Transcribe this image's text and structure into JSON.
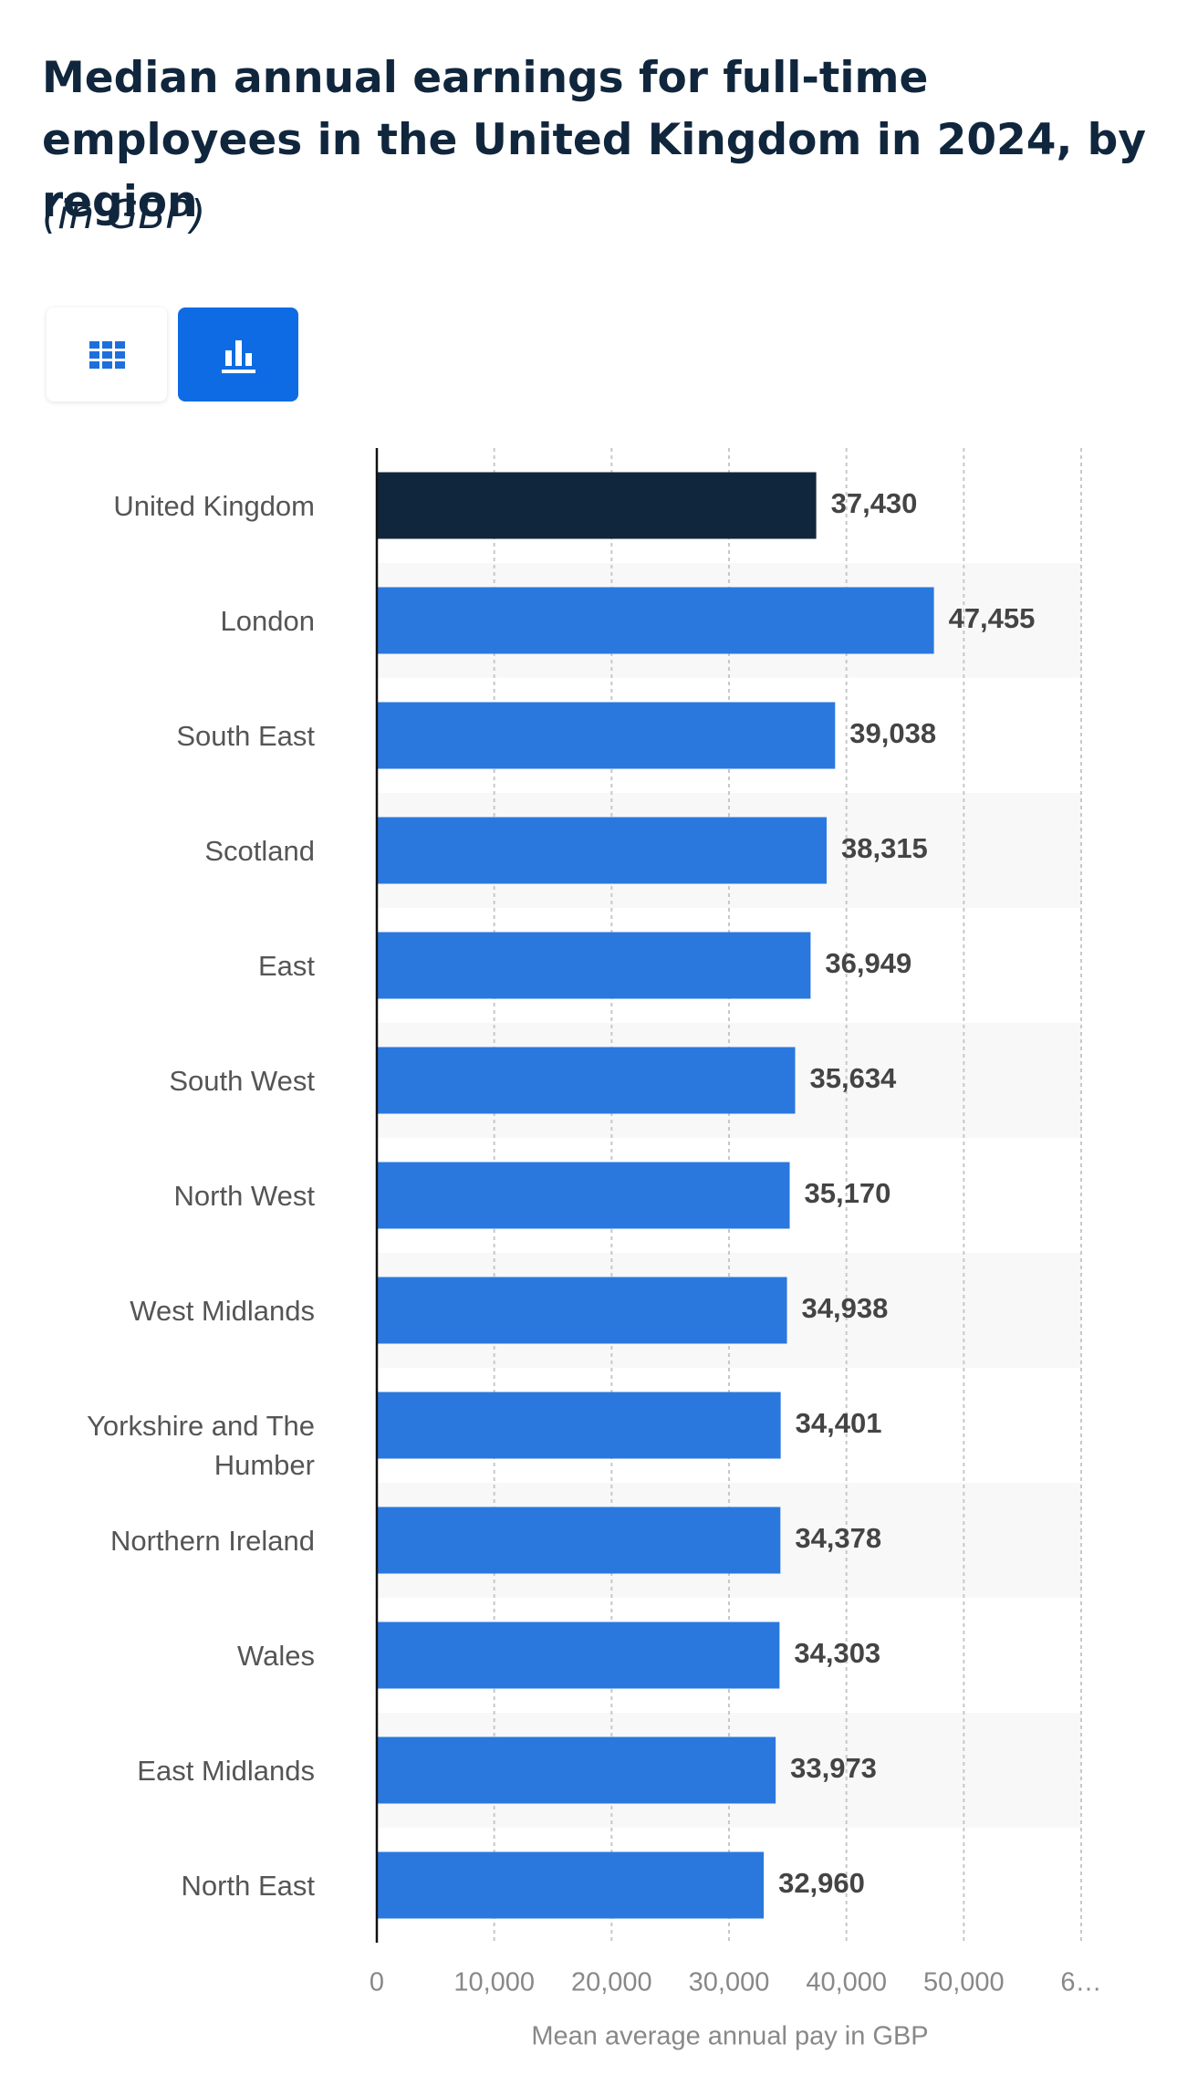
{
  "chart_data": {
    "type": "hbar",
    "title": "Median annual earnings for full-time employees in the United Kingdom in 2024, by region",
    "subtitle": "(in GBP)",
    "x_label": "Mean average annual pay in GBP",
    "categories": [
      "United Kingdom",
      "London",
      "South East",
      "Scotland",
      "East",
      "South West",
      "North West",
      "West Midlands",
      "Yorkshire and The Humber",
      "Northern Ireland",
      "Wales",
      "East Midlands",
      "North East"
    ],
    "values": [
      37430,
      47455,
      39038,
      38315,
      36949,
      35634,
      35170,
      34938,
      34401,
      34378,
      34303,
      33973,
      32960
    ],
    "value_labels": [
      "37,430",
      "47,455",
      "39,038",
      "38,315",
      "36,949",
      "35,634",
      "35,170",
      "34,938",
      "34,401",
      "34,378",
      "34,303",
      "33,973",
      "32,960"
    ],
    "colors": [
      "#10263d",
      "#2a78de",
      "#2a78de",
      "#2a78de",
      "#2a78de",
      "#2a78de",
      "#2a78de",
      "#2a78de",
      "#2a78de",
      "#2a78de",
      "#2a78de",
      "#2a78de",
      "#2a78de"
    ],
    "xlim": [
      0,
      60000
    ],
    "xticks": [
      0,
      {
        "value": 10000,
        "label": "10,000"
      },
      {
        "value": 20000,
        "label": "20,000"
      },
      {
        "value": 30000,
        "label": "30,000"
      },
      {
        "value": 40000,
        "label": "40,000"
      },
      {
        "value": 50000,
        "label": "50,000"
      },
      {
        "value": 60000,
        "label": "6…"
      }
    ],
    "grid": true
  }
}
